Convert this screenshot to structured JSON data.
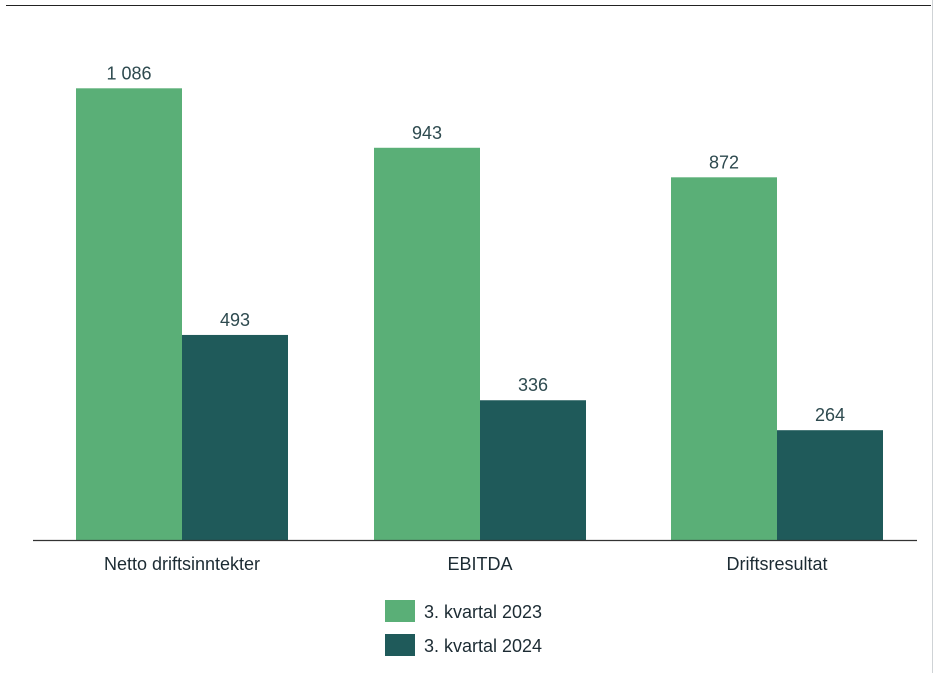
{
  "chart_data": {
    "type": "bar",
    "title": "",
    "xlabel": "",
    "ylabel": "",
    "categories": [
      "Netto driftsinntekter",
      "EBITDA",
      "Driftsresultat"
    ],
    "series": [
      {
        "name": "3. kvartal 2023",
        "values": [
          1086,
          943,
          872
        ],
        "labels": [
          "1 086",
          "943",
          "872"
        ],
        "color": "#5aaf77"
      },
      {
        "name": "3. kvartal 2024",
        "values": [
          493,
          336,
          264
        ],
        "labels": [
          "493",
          "336",
          "264"
        ],
        "color": "#1f5a5a"
      }
    ],
    "ylim": [
      0,
      1130
    ],
    "grid": false,
    "legend_position": "bottom-center",
    "text_color": "#2e4a4f",
    "axis_color": "#333333"
  }
}
